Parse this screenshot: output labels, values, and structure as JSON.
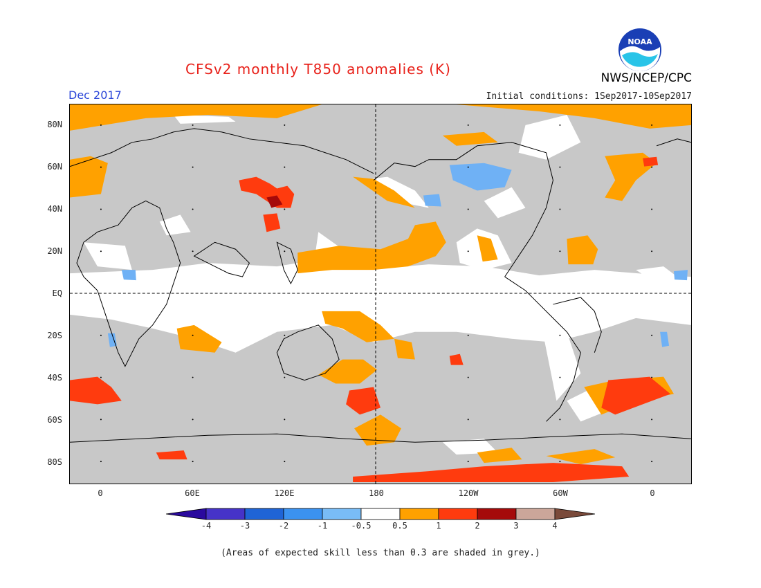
{
  "header": {
    "title": "CFSv2 monthly T850 anomalies (K)",
    "month": "Dec 2017",
    "initial_conditions": "Initial conditions: 1Sep2017-10Sep2017",
    "agency": "NWS/NCEP/CPC",
    "logo_text": "NOAA"
  },
  "map": {
    "lat_labels": [
      "80N",
      "60N",
      "40N",
      "20N",
      "EQ",
      "20S",
      "40S",
      "60S",
      "80S"
    ],
    "lon_labels": [
      "0",
      "60E",
      "120E",
      "180",
      "120W",
      "60W",
      "0"
    ],
    "colors": {
      "background": "#c8c8c8",
      "near_zero": "#ffffff",
      "pos_0_5_1": "#ffa100",
      "pos_1_2": "#ff3b0e",
      "pos_2_3": "#a50a0a",
      "neg_0_5_1": "#6fb1f5",
      "neg_1_2": "#3b92f0"
    }
  },
  "colorbar": {
    "labels": [
      "-4",
      "-3",
      "-2",
      "-1",
      "-0.5",
      "0.5",
      "1",
      "2",
      "3",
      "4"
    ],
    "colors": [
      "#2a0a9e",
      "#4633c8",
      "#1f64d6",
      "#3b92f0",
      "#79bcf6",
      "#ffffff",
      "#ffa100",
      "#ff3b0e",
      "#a50a0a",
      "#cba69a",
      "#7a4a3a"
    ]
  },
  "footnote": "(Areas of expected skill less than 0.3 are shaded in grey.)"
}
